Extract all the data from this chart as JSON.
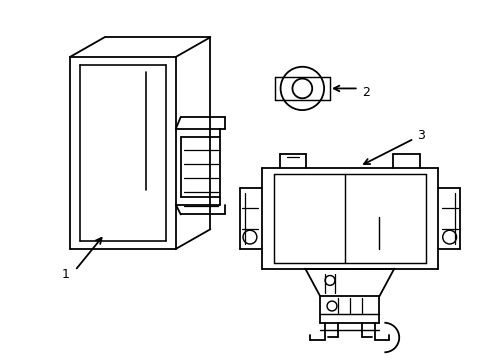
{
  "background_color": "#ffffff",
  "line_color": "#000000",
  "line_width": 1.3,
  "figsize": [
    4.89,
    3.6
  ],
  "dpi": 100
}
